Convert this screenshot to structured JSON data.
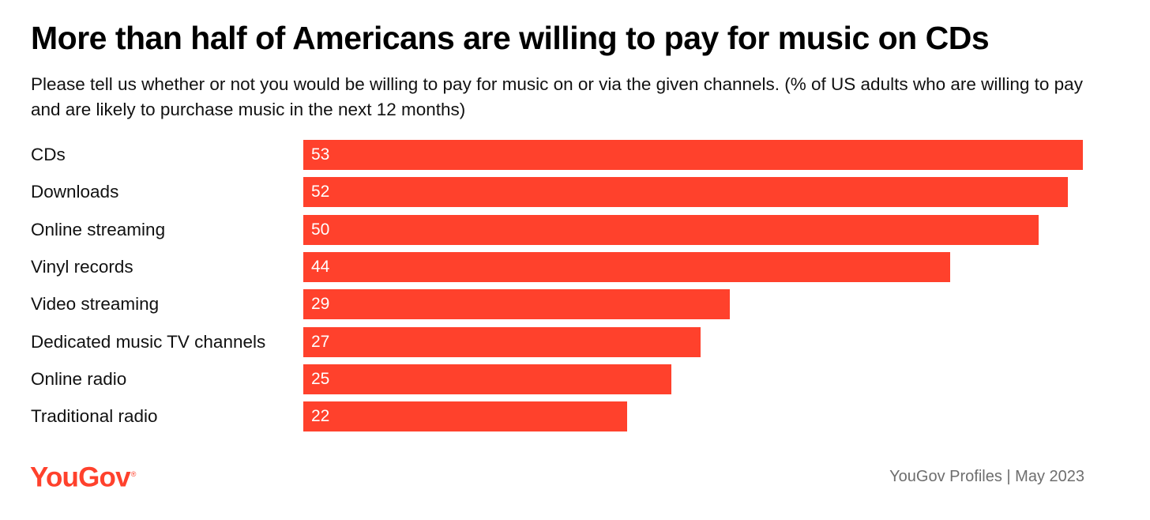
{
  "chart_data": {
    "type": "bar",
    "orientation": "horizontal",
    "title": "More than half of Americans are willing to pay for music on CDs",
    "subtitle": "Please tell us whether or not you would be willing to pay for music on or via the given channels. (% of US adults who are willing to pay and are likely to purchase music in the next 12 months)",
    "categories": [
      "CDs",
      "Downloads",
      "Online streaming",
      "Vinyl records",
      "Video streaming",
      "Dedicated music TV channels",
      "Online radio",
      "Traditional radio"
    ],
    "values": [
      53,
      52,
      50,
      44,
      29,
      27,
      25,
      22
    ],
    "xlim": [
      0,
      53
    ],
    "xlabel": "",
    "ylabel": "",
    "grid": false,
    "bar_color": "#ff412c",
    "value_label_color": "#ffffff"
  },
  "branding": {
    "logo_text": "YouGov",
    "logo_mark": "®",
    "logo_color": "#ff412c"
  },
  "source": "YouGov Profiles | May 2023"
}
